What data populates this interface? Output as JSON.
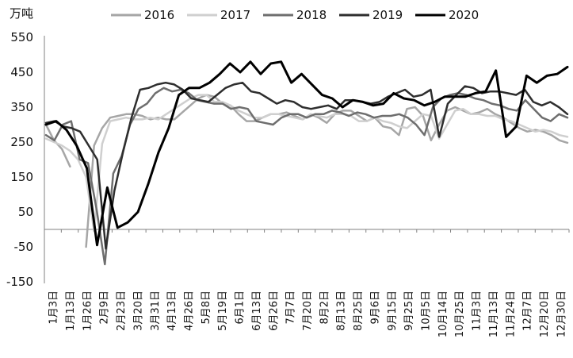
{
  "chart_data": {
    "type": "line",
    "unit_label": "万吨",
    "ylim": [
      -150,
      550
    ],
    "y_ticks": [
      550,
      450,
      350,
      250,
      150,
      50,
      -50,
      -150
    ],
    "y_tick_labels": [
      "550",
      "450",
      "350",
      "250",
      "150",
      "50",
      "-50",
      "-150"
    ],
    "grid": false,
    "legend_position": "top",
    "x_tick_labels": [
      "1月3日",
      "1月13日",
      "1月26日",
      "2月9日",
      "2月23日",
      "3月20日",
      "3月31日",
      "4月13日",
      "4月26日",
      "5月8日",
      "5月19日",
      "6月1日",
      "6月13日",
      "6月26日",
      "7月7日",
      "7月20日",
      "8月2日",
      "8月13日",
      "8月25日",
      "9月6日",
      "9月15日",
      "9月25日",
      "10月5日",
      "10月14日",
      "10月25日",
      "11月3日",
      "11月13日",
      "11月24日",
      "12月7日",
      "12月20日",
      "12月30日"
    ],
    "series": [
      {
        "name": "2016",
        "color": "#a6a6a6",
        "width": 2.5,
        "values": [
          300,
          255,
          230,
          180,
          null,
          null,
          null,
          null,
          null,
          null,
          null,
          null,
          null,
          null,
          null,
          null,
          null,
          null,
          null,
          null,
          null,
          null,
          null,
          null,
          null,
          null,
          null,
          null,
          null,
          null,
          null,
          null,
          null,
          null,
          null,
          null,
          null,
          null,
          null,
          null,
          null,
          null,
          null,
          null,
          null,
          null,
          null,
          null,
          null,
          null,
          null,
          null,
          null,
          null,
          null,
          null,
          null,
          null,
          null,
          null,
          null,
          null,
          null,
          null,
          null,
          null,
          null,
          null,
          null,
          null,
          null,
          null,
          null,
          null,
          null,
          null,
          null,
          null,
          null,
          null,
          null,
          null,
          null,
          null,
          null,
          null,
          null,
          null,
          null,
          null,
          null,
          null,
          null,
          null,
          null,
          null,
          null,
          null,
          null,
          null,
          null,
          null,
          null,
          null,
          null,
          null,
          null,
          null,
          null,
          null,
          null,
          null,
          null,
          null,
          null,
          null,
          null,
          null,
          null,
          null,
          null,
          null,
          null,
          null,
          null,
          null,
          null,
          null,
          null,
          null,
          null,
          null,
          null,
          null,
          null,
          null,
          null,
          null,
          null,
          null,
          null,
          null,
          null,
          null,
          null,
          null,
          null,
          null,
          null,
          null,
          null,
          null,
          null,
          null,
          null,
          null,
          null,
          null,
          null,
          null,
          null,
          null,
          null,
          null,
          null,
          null,
          null,
          null,
          null,
          null,
          null,
          null,
          null,
          null,
          null,
          null,
          null,
          null,
          null,
          null,
          null,
          null,
          null,
          null,
          null,
          null,
          null,
          null,
          null,
          null,
          null,
          null,
          null,
          null,
          null,
          null,
          null,
          null,
          null,
          null,
          null,
          null,
          null,
          null,
          null,
          null,
          null,
          null,
          null,
          null,
          null,
          null,
          null,
          null,
          null,
          null,
          null,
          null,
          null,
          null,
          null,
          null,
          null,
          null,
          null,
          null,
          null,
          null,
          null,
          null,
          null,
          null,
          null,
          null,
          null,
          null,
          null,
          null,
          null,
          null,
          null,
          null,
          null,
          null,
          null,
          null,
          null,
          null,
          null,
          null,
          null,
          null,
          null,
          null,
          null,
          null,
          null,
          null,
          null,
          null,
          null,
          null,
          null,
          null,
          null,
          null,
          null,
          null,
          null,
          null,
          null,
          null,
          null,
          null,
          null,
          null,
          null,
          null,
          null,
          null,
          null,
          null,
          null,
          null,
          null,
          null,
          null,
          null,
          null,
          null,
          null,
          null,
          null,
          null,
          null,
          null,
          null,
          null,
          null,
          null,
          null,
          null,
          null,
          null,
          null,
          null,
          null,
          null,
          null,
          null,
          null,
          null,
          null,
          null,
          null,
          null,
          null,
          null,
          null,
          null,
          null,
          null,
          null,
          null,
          null,
          null,
          null,
          null,
          null,
          null,
          null,
          null,
          null,
          null,
          null,
          null,
          null,
          null,
          null,
          null,
          null,
          null,
          null,
          null,
          null,
          null,
          null,
          null,
          null,
          null,
          null,
          null,
          null,
          null,
          null,
          null
        ]
      },
      {
        "name": "2017",
        "color": "#cfcfcf",
        "width": 2.5,
        "values": []
      },
      {
        "name": "2018",
        "color": "#6e6e6e",
        "width": 2.5,
        "values": []
      },
      {
        "name": "2019",
        "color": "#2e2e2e",
        "width": 2.5,
        "values": []
      },
      {
        "name": "2020",
        "color": "#000000",
        "width": 3,
        "values": []
      }
    ]
  }
}
